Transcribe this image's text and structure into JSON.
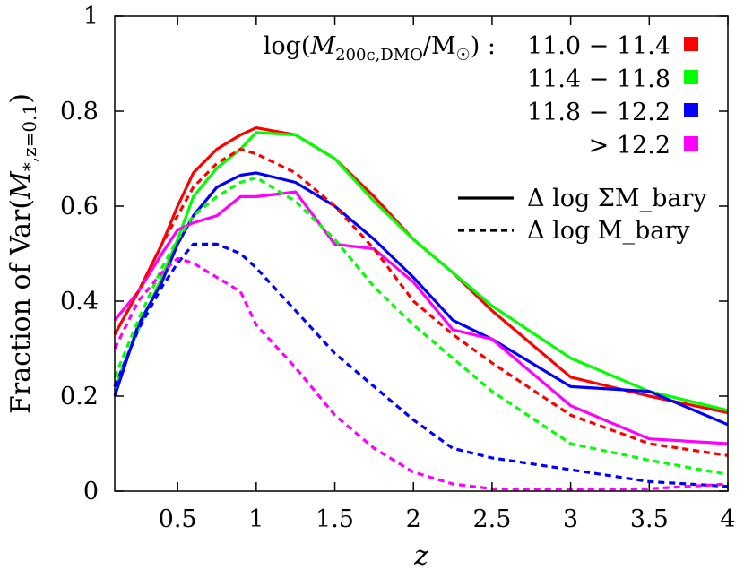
{
  "chart_data": {
    "type": "line",
    "xlabel": "z",
    "ylabel": "Fraction of Var(M_{*,z=0.1})",
    "xlim": [
      0.1,
      4.0
    ],
    "ylim": [
      0,
      1.0
    ],
    "x_ticks": [
      "0.5",
      "1",
      "1.5",
      "2",
      "2.5",
      "3",
      "3.5",
      "4"
    ],
    "x_tick_values": [
      0.5,
      1.0,
      1.5,
      2.0,
      2.5,
      3.0,
      3.5,
      4.0
    ],
    "y_ticks": [
      "0",
      "0.2",
      "0.4",
      "0.6",
      "0.8",
      "1"
    ],
    "y_tick_values": [
      0,
      0.2,
      0.4,
      0.6,
      0.8,
      1.0
    ],
    "grid": false,
    "legend_placement": "top-right",
    "legend": {
      "mass_bin_title": "log(M_200c,DMO/M☉) :",
      "mass_bins": [
        "11.0 − 11.4",
        "11.4 − 11.8",
        "11.8 − 12.2",
        "> 12.2"
      ],
      "style_entries": [
        {
          "label": "Δ log ΣM_bary",
          "dash": "solid"
        },
        {
          "label": "Δ log M_bary",
          "dash": "dashed"
        }
      ]
    },
    "colors": [
      "#ff0000",
      "#00ff00",
      "#0000ff",
      "#ff00ff"
    ],
    "series": [
      {
        "bin": 0,
        "dash": "solid",
        "color": "#ff0000",
        "x": [
          0.1,
          0.25,
          0.4,
          0.5,
          0.6,
          0.75,
          0.9,
          1.0,
          1.25,
          1.5,
          1.75,
          2.0,
          2.25,
          2.5,
          3.0,
          3.5,
          4.0
        ],
        "y": [
          0.33,
          0.42,
          0.52,
          0.6,
          0.67,
          0.72,
          0.75,
          0.765,
          0.75,
          0.7,
          0.62,
          0.53,
          0.46,
          0.38,
          0.24,
          0.2,
          0.165
        ]
      },
      {
        "bin": 1,
        "dash": "solid",
        "color": "#00ff00",
        "x": [
          0.1,
          0.25,
          0.4,
          0.5,
          0.6,
          0.75,
          0.9,
          1.0,
          1.25,
          1.5,
          1.75,
          2.0,
          2.25,
          2.5,
          3.0,
          3.5,
          4.0
        ],
        "y": [
          0.22,
          0.34,
          0.45,
          0.53,
          0.62,
          0.68,
          0.72,
          0.755,
          0.75,
          0.7,
          0.61,
          0.53,
          0.46,
          0.39,
          0.28,
          0.21,
          0.17
        ]
      },
      {
        "bin": 2,
        "dash": "solid",
        "color": "#0000ff",
        "x": [
          0.1,
          0.25,
          0.4,
          0.5,
          0.6,
          0.75,
          0.9,
          1.0,
          1.25,
          1.5,
          1.75,
          2.0,
          2.25,
          2.5,
          3.0,
          3.5,
          4.0
        ],
        "y": [
          0.2,
          0.35,
          0.44,
          0.52,
          0.58,
          0.64,
          0.665,
          0.67,
          0.65,
          0.6,
          0.53,
          0.45,
          0.36,
          0.32,
          0.22,
          0.21,
          0.14
        ]
      },
      {
        "bin": 3,
        "dash": "solid",
        "color": "#ff00ff",
        "x": [
          0.1,
          0.25,
          0.4,
          0.5,
          0.6,
          0.75,
          0.9,
          1.0,
          1.25,
          1.5,
          1.75,
          2.0,
          2.25,
          2.5,
          3.0,
          3.5,
          4.0
        ],
        "y": [
          0.36,
          0.42,
          0.5,
          0.55,
          0.565,
          0.58,
          0.62,
          0.62,
          0.63,
          0.52,
          0.51,
          0.44,
          0.34,
          0.32,
          0.18,
          0.11,
          0.1
        ]
      },
      {
        "bin": 0,
        "dash": "dashed",
        "color": "#ff0000",
        "x": [
          0.1,
          0.25,
          0.4,
          0.5,
          0.6,
          0.75,
          0.9,
          1.0,
          1.25,
          1.5,
          1.75,
          2.0,
          2.25,
          2.5,
          3.0,
          3.5,
          4.0
        ],
        "y": [
          0.33,
          0.42,
          0.52,
          0.58,
          0.64,
          0.69,
          0.72,
          0.71,
          0.67,
          0.6,
          0.51,
          0.4,
          0.33,
          0.27,
          0.16,
          0.1,
          0.075
        ]
      },
      {
        "bin": 1,
        "dash": "dashed",
        "color": "#00ff00",
        "x": [
          0.1,
          0.25,
          0.4,
          0.5,
          0.6,
          0.75,
          0.9,
          1.0,
          1.25,
          1.5,
          1.75,
          2.0,
          2.25,
          2.5,
          3.0,
          3.5,
          4.0
        ],
        "y": [
          0.24,
          0.36,
          0.47,
          0.53,
          0.58,
          0.62,
          0.65,
          0.66,
          0.61,
          0.53,
          0.43,
          0.35,
          0.28,
          0.21,
          0.1,
          0.065,
          0.035
        ]
      },
      {
        "bin": 2,
        "dash": "dashed",
        "color": "#0000ff",
        "x": [
          0.1,
          0.25,
          0.4,
          0.5,
          0.6,
          0.75,
          0.9,
          1.0,
          1.25,
          1.5,
          1.75,
          2.0,
          2.25,
          2.5,
          3.0,
          3.5,
          4.0
        ],
        "y": [
          0.22,
          0.34,
          0.43,
          0.48,
          0.52,
          0.52,
          0.5,
          0.47,
          0.38,
          0.29,
          0.22,
          0.15,
          0.09,
          0.07,
          0.045,
          0.02,
          0.01
        ]
      },
      {
        "bin": 3,
        "dash": "dashed",
        "color": "#ff00ff",
        "x": [
          0.1,
          0.25,
          0.4,
          0.5,
          0.6,
          0.75,
          0.9,
          1.0,
          1.25,
          1.5,
          1.75,
          2.0,
          2.25,
          2.5,
          3.0,
          3.5,
          4.0
        ],
        "y": [
          0.3,
          0.4,
          0.46,
          0.49,
          0.48,
          0.45,
          0.42,
          0.35,
          0.26,
          0.16,
          0.09,
          0.04,
          0.015,
          0.005,
          0.003,
          0.005,
          0.015
        ]
      }
    ]
  }
}
